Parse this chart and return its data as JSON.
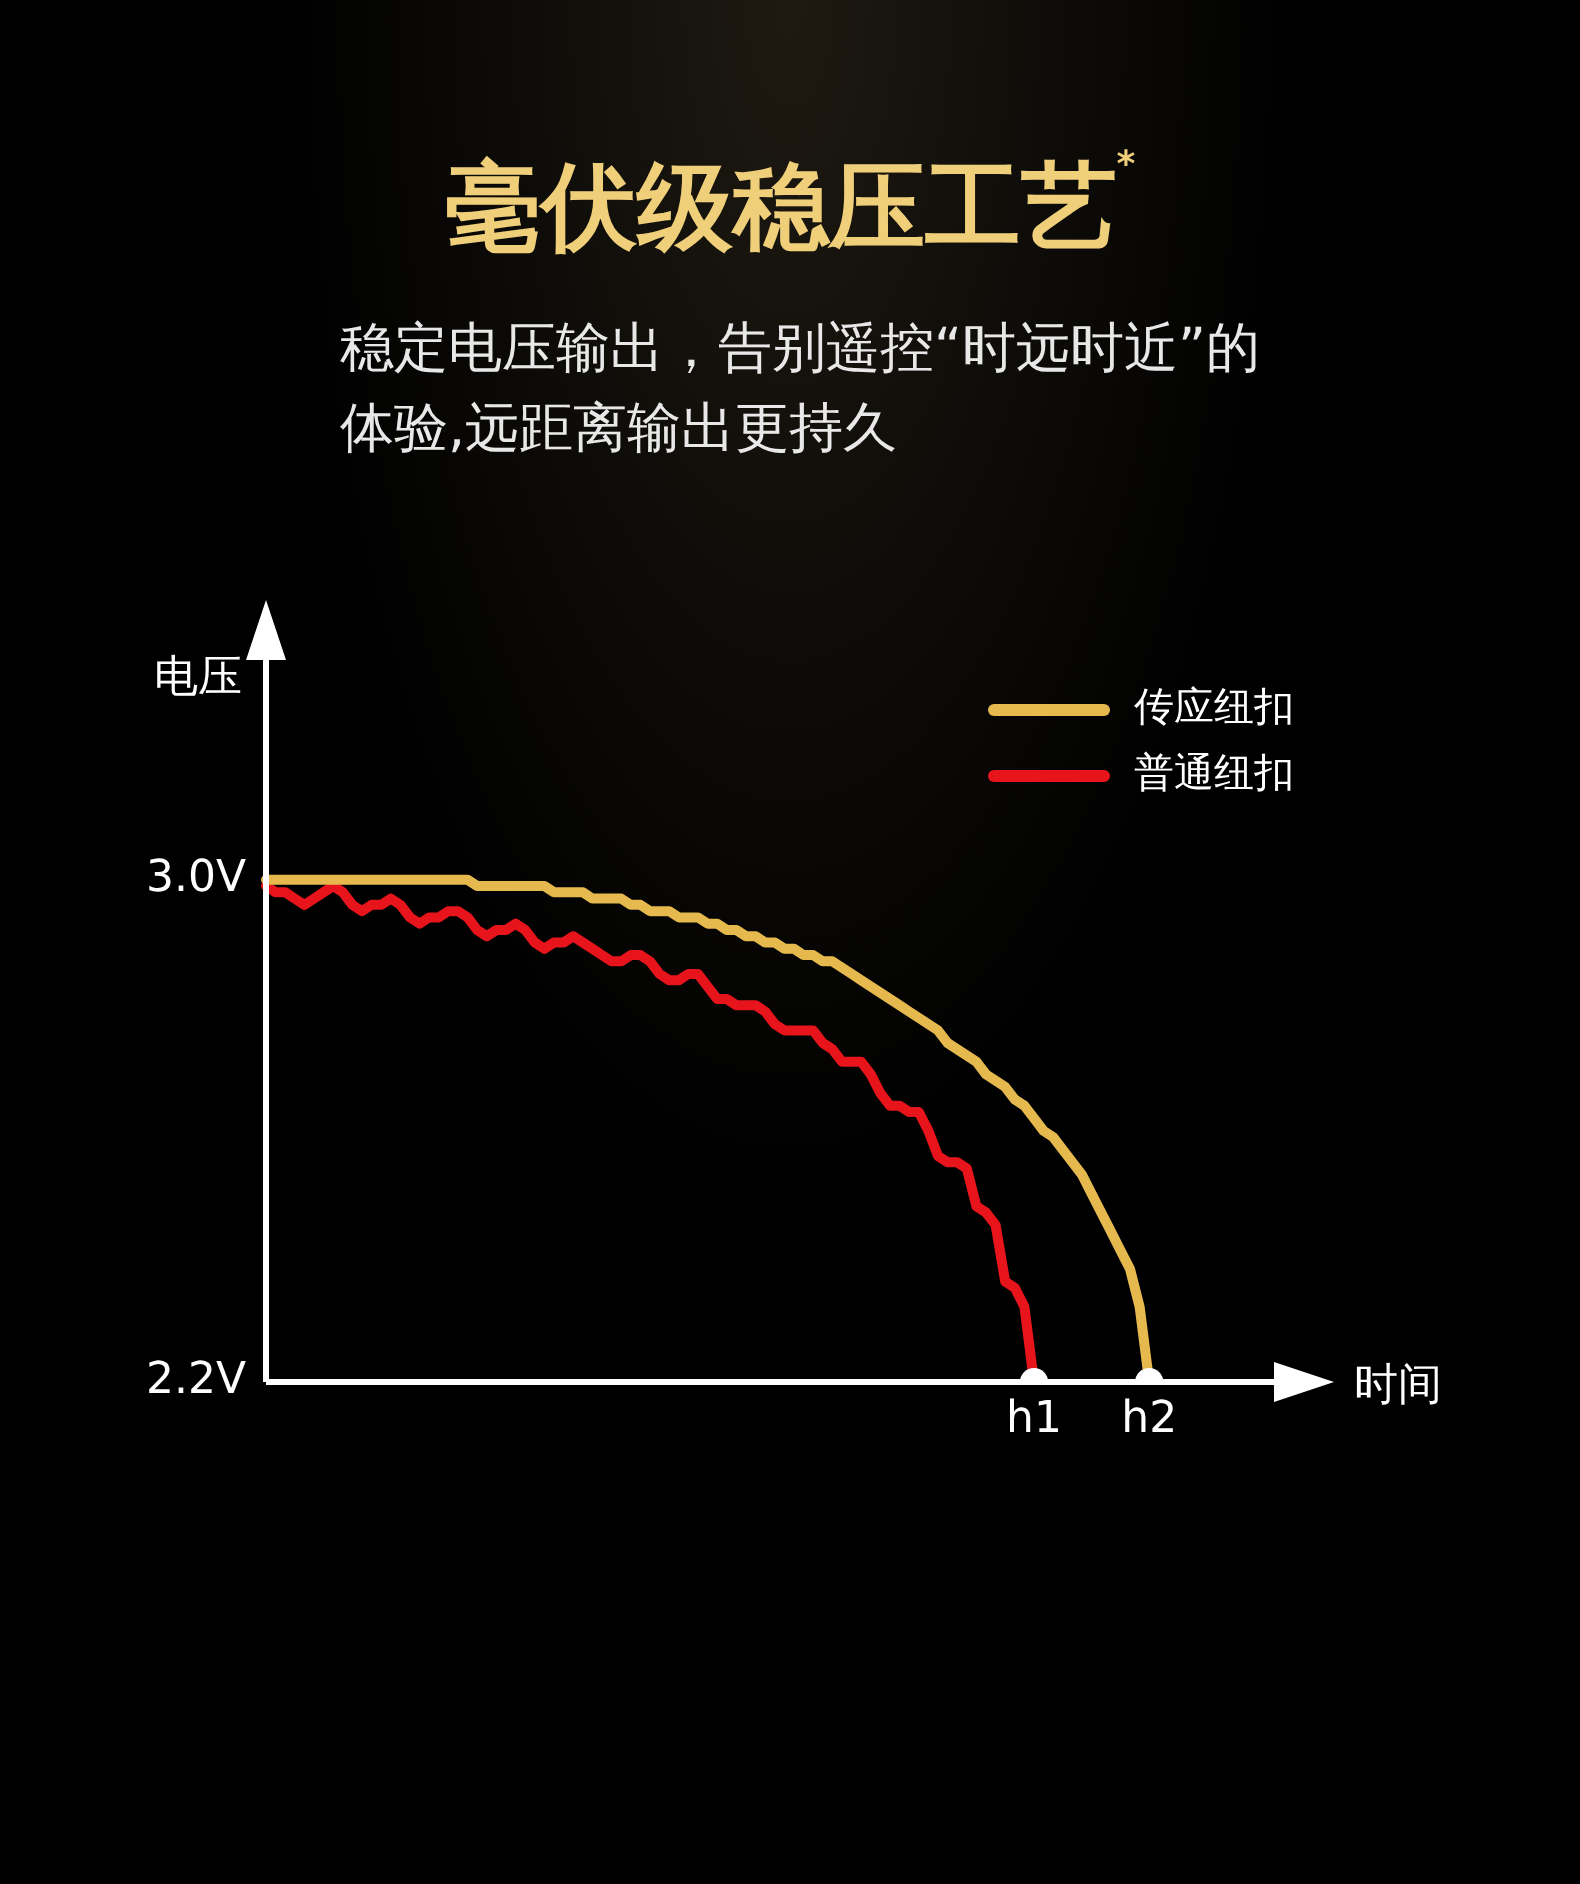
{
  "chart_data": {
    "type": "line",
    "title": "毫伏级稳压工艺$^{*}$",
    "subtitle": "稳定电压输出，告别遥控“时远时近”的体验,远距离输出更持久",
    "xlabel": "时间",
    "ylabel": "电压",
    "categories": [
      null,
      null,
      null,
      null,
      null,
      null,
      null,
      null,
      null,
      null,
      null,
      null,
      null,
      null,
      null,
      null,
      null,
      null,
      null,
      null,
      null,
      null,
      null,
      null,
      null,
      null,
      null,
      null,
      null,
      null,
      null,
      null,
      null,
      null,
      null,
      null,
      null,
      null,
      null,
      null,
      null,
      null,
      null,
      null,
      null,
      null,
      null,
      null,
      null,
      null,
      null,
      null,
      null,
      null,
      null,
      null,
      null,
      null,
      null,
      null,
      null,
      null,
      null,
      null,
      null,
      null,
      null,
      null,
      null,
      null,
      null,
      null,
      null,
      null,
      null,
      null,
      null,
      null,
      null,
      null,
      "h1",
      null,
      null,
      null,
      null,
      null,
      null,
      null,
      null,
      null,
      null,
      null,
      "h2",
      null,
      null,
      null,
      null,
      null,
      null,
      null,
      null,
      null,
      null,
      null,
      null,
      null
    ],
    "series": [
      {
        "name": "传应纽扣",
        "color": "#e6b94e",
        "values": [
          3.0,
          3.0,
          3.0,
          3.0,
          3.0,
          3.0,
          3.0,
          3.0,
          3.0,
          3.0,
          3.0,
          3.0,
          3.0,
          3.0,
          3.0,
          3.0,
          3.0,
          3.0,
          3.0,
          3.0,
          3.0,
          3.0,
          2.99,
          2.99,
          2.99,
          2.99,
          2.99,
          2.99,
          2.99,
          2.99,
          2.98,
          2.98,
          2.98,
          2.98,
          2.97,
          2.97,
          2.97,
          2.97,
          2.96,
          2.96,
          2.95,
          2.95,
          2.95,
          2.94,
          2.94,
          2.94,
          2.93,
          2.93,
          2.92,
          2.92,
          2.91,
          2.91,
          2.9,
          2.9,
          2.89,
          2.89,
          2.88,
          2.88,
          2.87,
          2.87,
          2.86,
          2.85,
          2.84,
          2.83,
          2.82,
          2.81,
          2.8,
          2.79,
          2.78,
          2.77,
          2.76,
          2.74,
          2.73,
          2.72,
          2.71,
          2.69,
          2.68,
          2.67,
          2.65,
          2.64,
          2.62,
          2.6,
          2.59,
          2.57,
          2.55,
          2.53,
          2.5,
          2.47,
          2.44,
          2.41,
          2.38,
          2.32,
          2.2,
          null,
          null,
          null,
          null,
          null,
          null,
          null,
          null,
          null,
          null,
          null,
          null,
          null
        ]
      },
      {
        "name": "普通纽扣",
        "color": "#e8141b",
        "values": [
          2.99,
          2.98,
          2.98,
          2.97,
          2.96,
          2.97,
          2.98,
          2.99,
          2.98,
          2.96,
          2.95,
          2.96,
          2.96,
          2.97,
          2.96,
          2.94,
          2.93,
          2.94,
          2.94,
          2.95,
          2.95,
          2.94,
          2.92,
          2.91,
          2.92,
          2.92,
          2.93,
          2.92,
          2.9,
          2.89,
          2.9,
          2.9,
          2.91,
          2.9,
          2.89,
          2.88,
          2.87,
          2.87,
          2.88,
          2.88,
          2.87,
          2.85,
          2.84,
          2.84,
          2.85,
          2.85,
          2.83,
          2.81,
          2.81,
          2.8,
          2.8,
          2.8,
          2.79,
          2.77,
          2.76,
          2.76,
          2.76,
          2.76,
          2.74,
          2.73,
          2.71,
          2.71,
          2.71,
          2.69,
          2.66,
          2.64,
          2.64,
          2.63,
          2.63,
          2.6,
          2.56,
          2.55,
          2.55,
          2.54,
          2.48,
          2.47,
          2.45,
          2.36,
          2.35,
          2.32,
          2.2,
          null,
          null,
          null,
          null,
          null,
          null,
          null,
          null,
          null,
          null,
          null,
          null,
          null,
          null,
          null,
          null,
          null,
          null,
          null,
          null,
          null,
          null,
          null,
          null,
          null
        ]
      }
    ],
    "ylim": [
      2.2,
      3.35
    ],
    "yticks": [
      {
        "value": 2.2,
        "label": "2.2V"
      },
      {
        "value": 3.0,
        "label": "3.0V"
      }
    ],
    "grid": false,
    "legend": "top right",
    "marker": "none",
    "line_style": "solid"
  }
}
